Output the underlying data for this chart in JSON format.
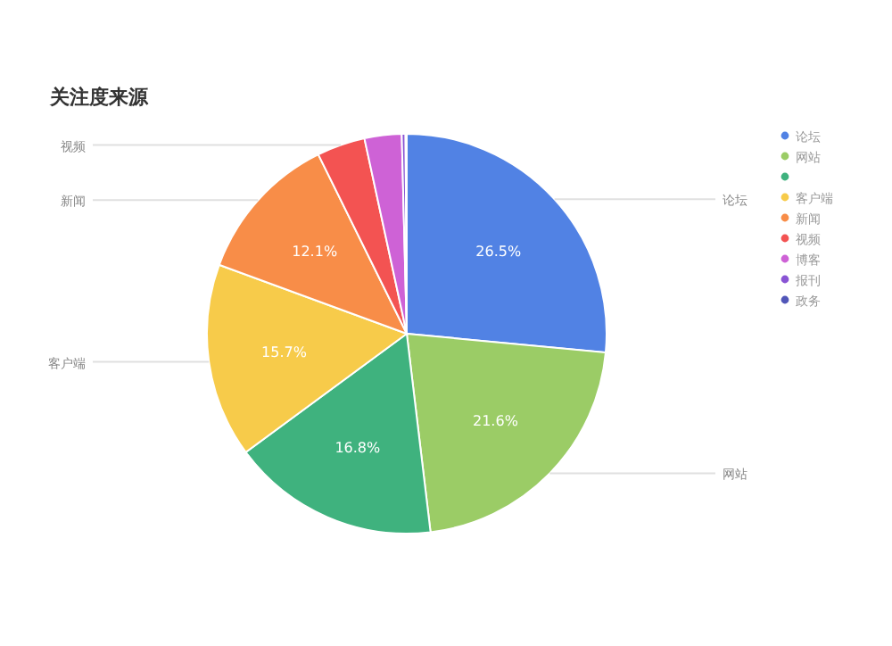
{
  "chart_data": {
    "type": "pie",
    "title": "关注度来源",
    "categories": [
      "论坛",
      "网站",
      null,
      "客户端",
      "新闻",
      "视频",
      "博客",
      "报刊",
      "政务"
    ],
    "values": [
      26.5,
      21.6,
      16.8,
      15.7,
      12.1,
      3.9,
      3.0,
      0.3,
      0.1
    ],
    "colors": [
      "#5182e4",
      "#9bcc66",
      "#3fb27e",
      "#f7cb4a",
      "#f88d48",
      "#f35352",
      "#ce62d6",
      "#8954d4",
      "#5156b8"
    ],
    "value_labels": [
      "26.5%",
      "21.6%",
      "16.8%",
      "15.7%",
      "12.1%",
      null,
      null,
      null,
      null
    ],
    "annotations": [
      {
        "text": "论坛",
        "x": "论坛"
      },
      {
        "text": "网站",
        "x": "网站"
      },
      {
        "text": "客户端",
        "x": "客户端"
      },
      {
        "text": "新闻",
        "x": "新闻"
      },
      {
        "text": "视频",
        "x": "视频"
      }
    ],
    "legend": "right"
  }
}
